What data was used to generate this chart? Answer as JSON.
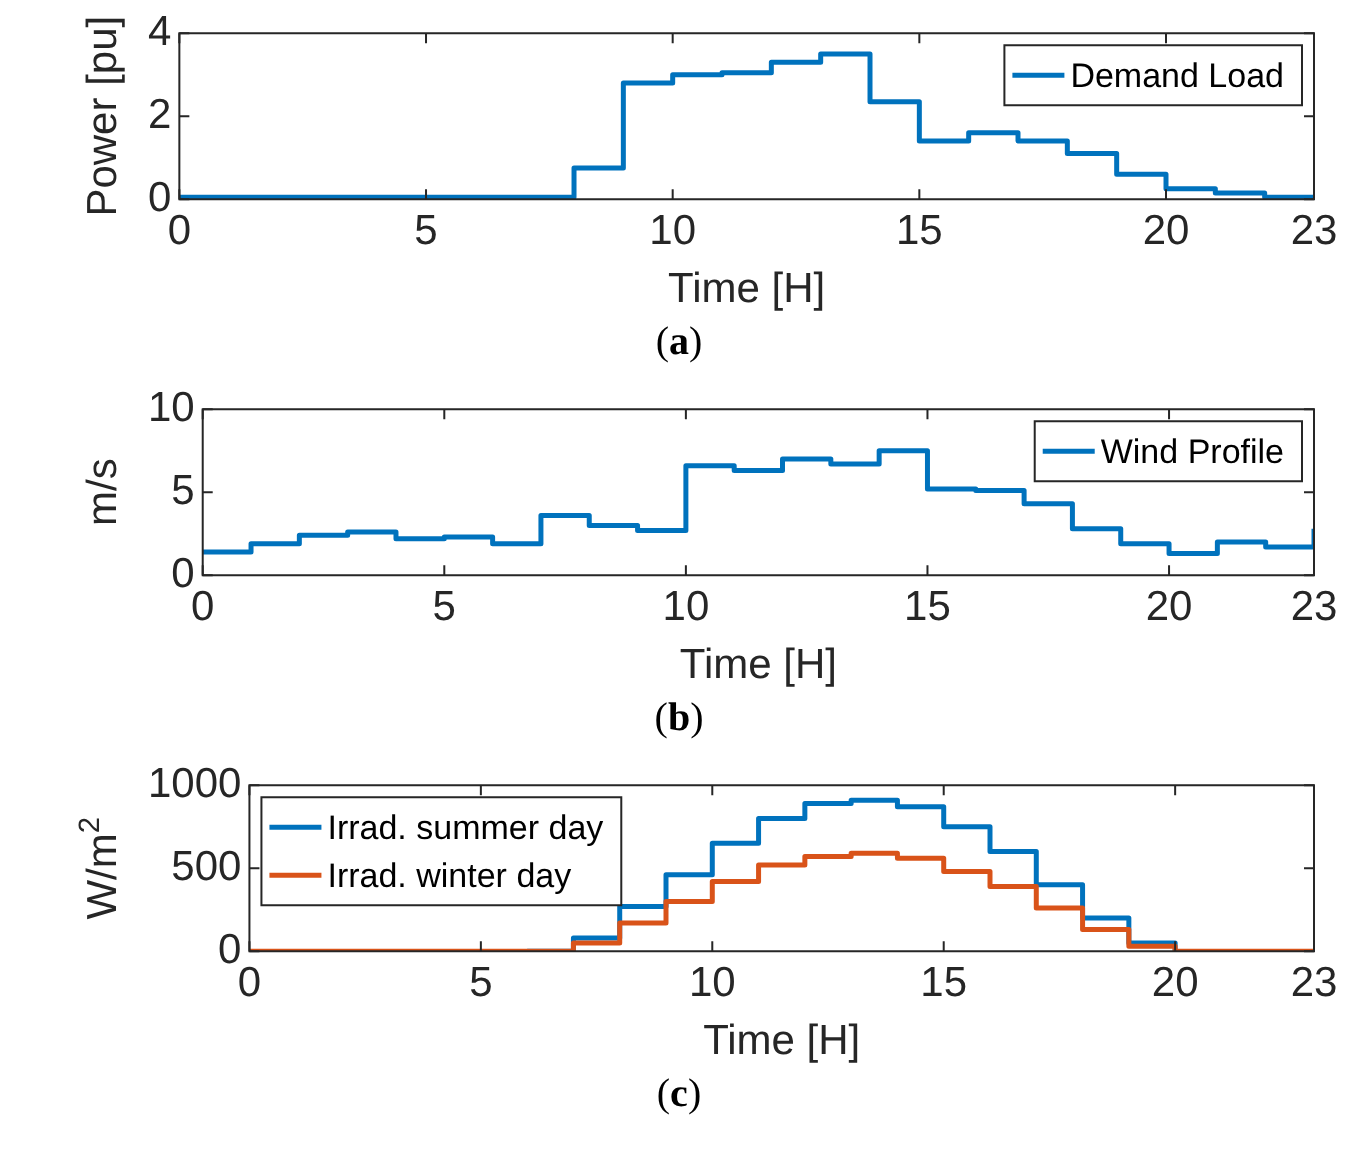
{
  "chart_data": [
    {
      "type": "step",
      "x": [
        0,
        1,
        2,
        3,
        4,
        5,
        6,
        7,
        8,
        9,
        10,
        11,
        12,
        13,
        14,
        15,
        16,
        17,
        18,
        19,
        20,
        21,
        22,
        23
      ],
      "xlim": [
        0,
        23
      ],
      "xticks": [
        0,
        5,
        10,
        15,
        20,
        23
      ],
      "ylim": [
        0,
        4
      ],
      "yticks": [
        0,
        2,
        4
      ],
      "xlabel": "Time [H]",
      "ylabel": "Power [pu]",
      "legend": "top right",
      "annotations": [
        "(a)"
      ],
      "series": [
        {
          "name": "Demand Load",
          "color": "#0072bd",
          "values": [
            0.05,
            0.05,
            0.05,
            0.05,
            0.05,
            0.05,
            0.05,
            0.05,
            0.75,
            2.8,
            3.0,
            3.05,
            3.3,
            3.5,
            2.35,
            1.4,
            1.6,
            1.4,
            1.1,
            0.6,
            0.25,
            0.15,
            0.05,
            0.05
          ]
        }
      ]
    },
    {
      "type": "step",
      "x": [
        0,
        1,
        2,
        3,
        4,
        5,
        6,
        7,
        8,
        9,
        10,
        11,
        12,
        13,
        14,
        15,
        16,
        17,
        18,
        19,
        20,
        21,
        22,
        23
      ],
      "xlim": [
        0,
        23
      ],
      "xticks": [
        0,
        5,
        10,
        15,
        20,
        23
      ],
      "ylim": [
        0,
        10
      ],
      "yticks": [
        0,
        5,
        10
      ],
      "xlabel": "Time [H]",
      "ylabel": "m/s",
      "legend": "top right",
      "annotations": [
        "(b)"
      ],
      "series": [
        {
          "name": "Wind Profile",
          "color": "#0072bd",
          "values": [
            1.4,
            1.9,
            2.4,
            2.6,
            2.2,
            2.3,
            1.9,
            3.6,
            3.0,
            2.7,
            6.6,
            6.3,
            7.0,
            6.7,
            7.5,
            5.2,
            5.1,
            4.3,
            2.8,
            1.9,
            1.3,
            2.0,
            1.7,
            2.8
          ]
        }
      ]
    },
    {
      "type": "step",
      "x": [
        0,
        1,
        2,
        3,
        4,
        5,
        6,
        7,
        8,
        9,
        10,
        11,
        12,
        13,
        14,
        15,
        16,
        17,
        18,
        19,
        20,
        21,
        22,
        23
      ],
      "xlim": [
        0,
        23
      ],
      "xticks": [
        0,
        5,
        10,
        15,
        20,
        23
      ],
      "ylim": [
        0,
        1000
      ],
      "yticks": [
        0,
        500,
        1000
      ],
      "xlabel": "Time [H]",
      "ylabel": "W/m$^{2}$",
      "legend": "top left",
      "annotations": [
        "(c)"
      ],
      "series": [
        {
          "name": "Irrad. summer day",
          "color": "#0072bd",
          "values": [
            null,
            null,
            null,
            null,
            null,
            null,
            0,
            80,
            270,
            460,
            650,
            800,
            890,
            910,
            870,
            750,
            600,
            400,
            200,
            50,
            0,
            null,
            null,
            null
          ]
        },
        {
          "name": "Irrad. winter day",
          "color": "#d95319",
          "values": [
            0,
            0,
            0,
            0,
            0,
            0,
            0,
            50,
            170,
            300,
            420,
            520,
            570,
            590,
            560,
            480,
            390,
            260,
            130,
            30,
            0,
            0,
            0,
            0
          ]
        }
      ]
    }
  ]
}
